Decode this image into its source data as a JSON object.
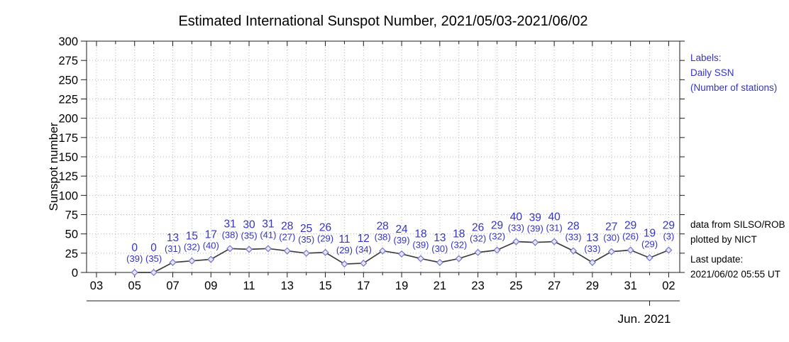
{
  "chart_data": {
    "type": "line",
    "title": "Estimated International Sunspot Number, 2021/05/03-2021/06/02",
    "ylabel": "Sunspot number",
    "month_label": "Jun. 2021",
    "y_range": [
      0,
      300
    ],
    "y_tick_step": 25,
    "x_range": [
      2.48,
      33.58
    ],
    "grid": true,
    "grid_days": [
      3,
      33
    ],
    "month_tick_x": 32,
    "x_ticks": [
      {
        "x": 3,
        "label": "03"
      },
      {
        "x": 5,
        "label": "05"
      },
      {
        "x": 7,
        "label": "07"
      },
      {
        "x": 9,
        "label": "09"
      },
      {
        "x": 11,
        "label": "11"
      },
      {
        "x": 13,
        "label": "13"
      },
      {
        "x": 15,
        "label": "15"
      },
      {
        "x": 17,
        "label": "17"
      },
      {
        "x": 19,
        "label": "19"
      },
      {
        "x": 21,
        "label": "21"
      },
      {
        "x": 23,
        "label": "23"
      },
      {
        "x": 25,
        "label": "25"
      },
      {
        "x": 27,
        "label": "27"
      },
      {
        "x": 29,
        "label": "29"
      },
      {
        "x": 31,
        "label": "31"
      },
      {
        "x": 33,
        "label": "02"
      }
    ],
    "series": [
      {
        "name": "Daily SSN",
        "points": [
          {
            "date": "2021-05-05",
            "x": 5,
            "ssn": 0,
            "stations": 39
          },
          {
            "date": "2021-05-06",
            "x": 6,
            "ssn": 0,
            "stations": 35
          },
          {
            "date": "2021-05-07",
            "x": 7,
            "ssn": 13,
            "stations": 31
          },
          {
            "date": "2021-05-08",
            "x": 8,
            "ssn": 15,
            "stations": 32
          },
          {
            "date": "2021-05-09",
            "x": 9,
            "ssn": 17,
            "stations": 40
          },
          {
            "date": "2021-05-10",
            "x": 10,
            "ssn": 31,
            "stations": 38
          },
          {
            "date": "2021-05-11",
            "x": 11,
            "ssn": 30,
            "stations": 35
          },
          {
            "date": "2021-05-12",
            "x": 12,
            "ssn": 31,
            "stations": 41
          },
          {
            "date": "2021-05-13",
            "x": 13,
            "ssn": 28,
            "stations": 27
          },
          {
            "date": "2021-05-14",
            "x": 14,
            "ssn": 25,
            "stations": 35
          },
          {
            "date": "2021-05-15",
            "x": 15,
            "ssn": 26,
            "stations": 29
          },
          {
            "date": "2021-05-16",
            "x": 16,
            "ssn": 11,
            "stations": 29
          },
          {
            "date": "2021-05-17",
            "x": 17,
            "ssn": 12,
            "stations": 34
          },
          {
            "date": "2021-05-18",
            "x": 18,
            "ssn": 28,
            "stations": 38
          },
          {
            "date": "2021-05-19",
            "x": 19,
            "ssn": 24,
            "stations": 39
          },
          {
            "date": "2021-05-20",
            "x": 20,
            "ssn": 18,
            "stations": 39
          },
          {
            "date": "2021-05-21",
            "x": 21,
            "ssn": 13,
            "stations": 30
          },
          {
            "date": "2021-05-22",
            "x": 22,
            "ssn": 18,
            "stations": 32
          },
          {
            "date": "2021-05-23",
            "x": 23,
            "ssn": 26,
            "stations": 32
          },
          {
            "date": "2021-05-24",
            "x": 24,
            "ssn": 29,
            "stations": 32
          },
          {
            "date": "2021-05-25",
            "x": 25,
            "ssn": 40,
            "stations": 33
          },
          {
            "date": "2021-05-26",
            "x": 26,
            "ssn": 39,
            "stations": 39
          },
          {
            "date": "2021-05-27",
            "x": 27,
            "ssn": 40,
            "stations": 31
          },
          {
            "date": "2021-05-28",
            "x": 28,
            "ssn": 28,
            "stations": 33
          },
          {
            "date": "2021-05-29",
            "x": 29,
            "ssn": 13,
            "stations": 33
          },
          {
            "date": "2021-05-30",
            "x": 30,
            "ssn": 27,
            "stations": 30
          },
          {
            "date": "2021-05-31",
            "x": 31,
            "ssn": 29,
            "stations": 26
          },
          {
            "date": "2021-06-01",
            "x": 32,
            "ssn": 19,
            "stations": 29
          },
          {
            "date": "2021-06-02",
            "x": 33,
            "ssn": 29,
            "stations": 3
          }
        ]
      }
    ]
  },
  "annotations": {
    "legend": [
      "Labels:",
      "Daily SSN",
      "(Number of stations)"
    ],
    "credit": [
      "data from SILSO/ROB",
      "plotted by NICT"
    ],
    "update": [
      "Last update:",
      "2021/06/02 05:55 UT"
    ]
  },
  "colors": {
    "accent": "#3434c2",
    "marker": "#7474ce",
    "marker_fill": "#e7e7f7",
    "line": "#3d3d3d",
    "grid": "#b4b4b4",
    "axis": "#1c1c1c",
    "text": "#000000"
  }
}
